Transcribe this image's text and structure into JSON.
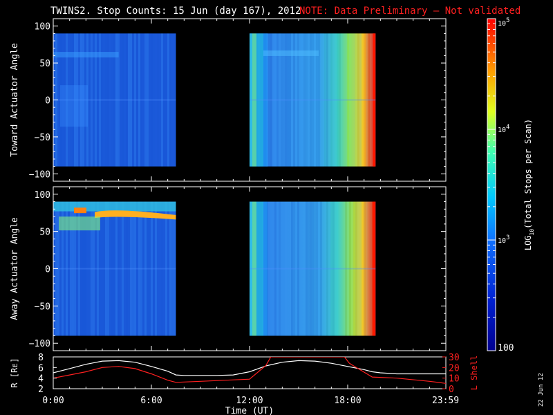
{
  "title": "TWINS2. Stop Counts: 15 Jun (day 167), 2012",
  "note": "NOTE: Data Preliminary – Not validated",
  "stamp": "22 Jun 12",
  "colors": {
    "note": "#ff2020",
    "lshell": "#ff2020",
    "r_trace": "#ffffff"
  },
  "chart_data": [
    {
      "type": "heatmap",
      "ylabel": "Toward Actuator Angle",
      "ylim": [
        -110,
        110
      ],
      "yticks": [
        "100",
        "50",
        "0",
        "−50",
        "−100"
      ],
      "ytick_values": [
        100,
        50,
        0,
        -50,
        -100
      ],
      "data_range": [
        -90,
        90
      ],
      "time_segments": [
        [
          0.0,
          7.5
        ],
        [
          12.0,
          19.7
        ]
      ],
      "xlim": [
        0,
        24
      ]
    },
    {
      "type": "heatmap",
      "ylabel": "Away Actuator Angle",
      "ylim": [
        -110,
        110
      ],
      "yticks": [
        "100",
        "50",
        "0",
        "−50",
        "−100"
      ],
      "ytick_values": [
        100,
        50,
        0,
        -50,
        -100
      ],
      "data_range": [
        -90,
        90
      ],
      "time_segments": [
        [
          0.0,
          7.5
        ],
        [
          12.0,
          19.7
        ]
      ],
      "xlim": [
        0,
        24
      ]
    },
    {
      "type": "line",
      "xlabel": "Time (UT)",
      "xticks": [
        "0:00",
        "6:00",
        "12:00",
        "18:00",
        "23:59"
      ],
      "xtick_values": [
        0,
        6,
        12,
        18,
        23.98
      ],
      "xlim": [
        0,
        24
      ],
      "left_axis": {
        "label": "R [Rᴇ]",
        "ylim": [
          2,
          8
        ],
        "ticks": [
          "8",
          "6",
          "4",
          "2"
        ],
        "tick_values": [
          8,
          6,
          4,
          2
        ]
      },
      "right_axis": {
        "label": "L Shell",
        "ylim": [
          0,
          30
        ],
        "ticks": [
          "30",
          "20",
          "10",
          "0"
        ],
        "tick_values": [
          30,
          20,
          10,
          0
        ]
      },
      "series": [
        {
          "axis": "left",
          "x": [
            0,
            1,
            2,
            3,
            4,
            5,
            6,
            7,
            7.5,
            8,
            9,
            10,
            11,
            12,
            13,
            14,
            15,
            16,
            17,
            18,
            19,
            19.5,
            20,
            21,
            22,
            23,
            24
          ],
          "y": [
            5.0,
            5.8,
            6.6,
            7.2,
            7.3,
            7.0,
            6.2,
            5.3,
            4.6,
            4.5,
            4.5,
            4.5,
            4.6,
            5.2,
            6.3,
            7.0,
            7.3,
            7.2,
            6.8,
            6.2,
            5.6,
            5.2,
            5.0,
            4.8,
            4.8,
            4.8,
            4.8
          ]
        },
        {
          "axis": "right",
          "x": [
            0,
            1,
            2,
            3,
            4,
            5,
            6,
            7,
            7.5,
            9,
            12,
            13,
            13.3,
            17.8,
            18.1,
            19.5,
            21,
            23,
            24
          ],
          "y": [
            10,
            13,
            16,
            20,
            21,
            19,
            14,
            8,
            6,
            7,
            9,
            22,
            30,
            30,
            24,
            11,
            10,
            7,
            5
          ]
        }
      ]
    }
  ],
  "colorbar": {
    "label_prefix": "LOG",
    "label_sub": "10",
    "label_suffix": "(Total Stops per Scan)",
    "ticks": [
      {
        "base": "10",
        "exp": "5",
        "value": 100000
      },
      {
        "base": "10",
        "exp": "4",
        "value": 10000
      },
      {
        "base": "10",
        "exp": "3",
        "value": 1000
      },
      {
        "base": "100",
        "exp": "",
        "value": 100
      }
    ],
    "range": [
      100,
      100000
    ]
  }
}
